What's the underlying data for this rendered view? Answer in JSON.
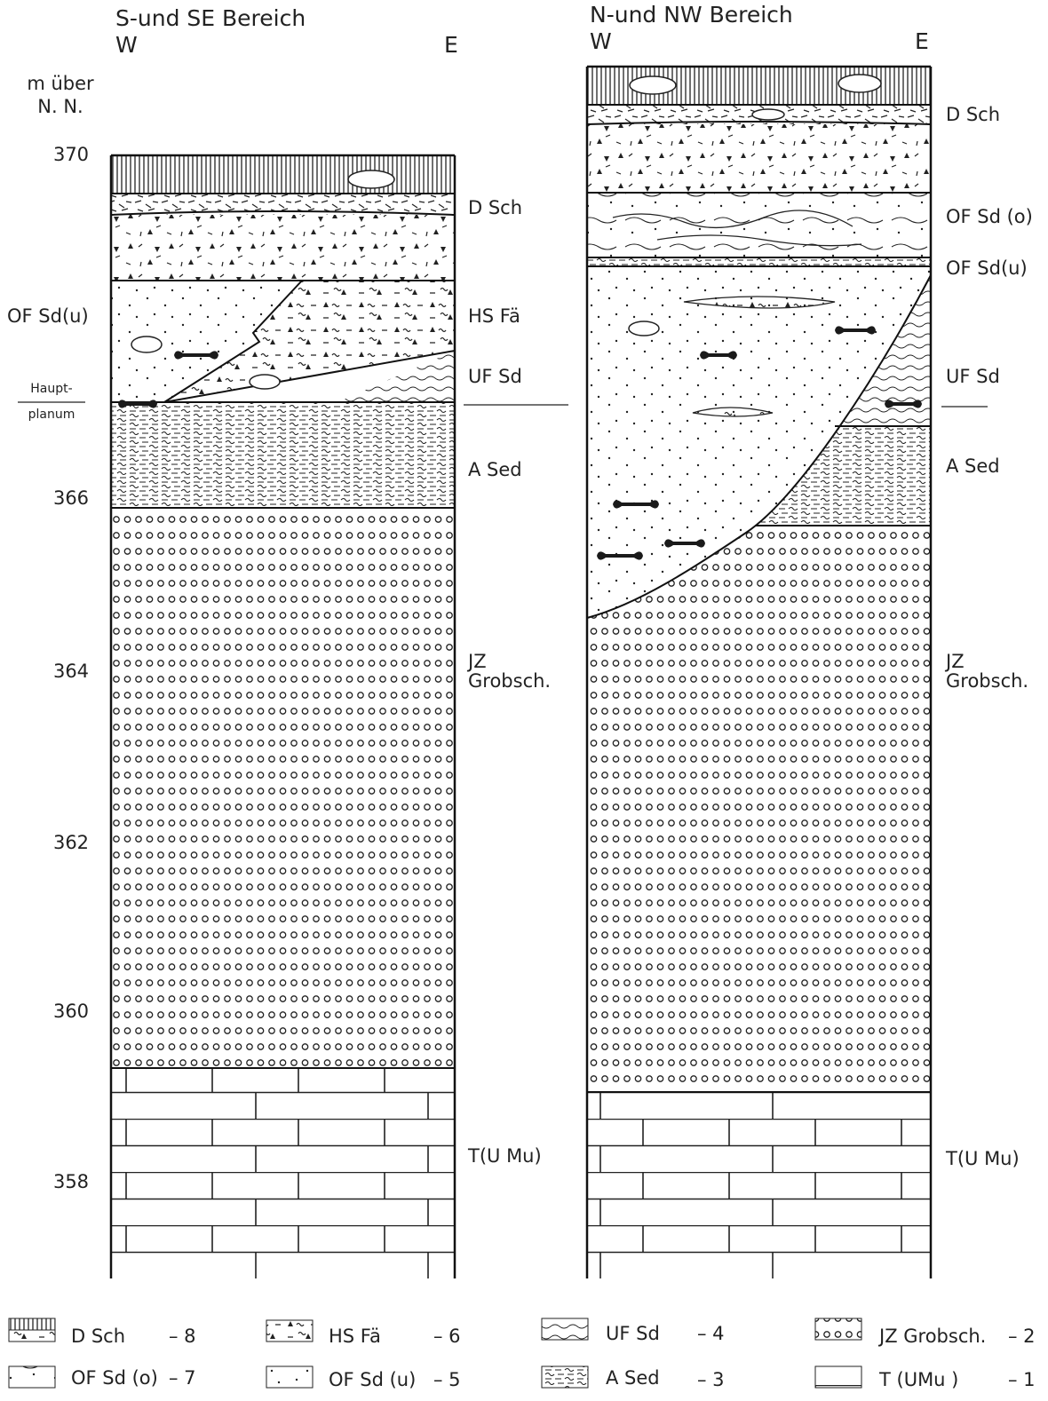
{
  "axis": {
    "unit": [
      "m über",
      "N. N."
    ],
    "levels": [
      "370",
      "366",
      "364",
      "362",
      "360",
      "358"
    ]
  },
  "marker": [
    "Haupt-",
    "planum"
  ],
  "profiles": [
    {
      "title": "S-und SE Bereich",
      "west": "W",
      "east": "E",
      "side_label": "OF Sd(u)",
      "labels": [
        "D Sch",
        "HS Fä",
        "UF Sd",
        "A Sed",
        "JZ",
        "Grobsch.",
        "T(U Mu)"
      ]
    },
    {
      "title": "N-und NW Bereich",
      "west": "W",
      "east": "E",
      "labels": [
        "D Sch",
        "OF Sd (o)",
        "OF Sd(u)",
        "UF Sd",
        "A Sed",
        "JZ",
        "Grobsch.",
        "T(U Mu)"
      ]
    }
  ],
  "legend": [
    {
      "label": "D Sch",
      "code": "– 8"
    },
    {
      "label": "HS Fä",
      "code": "– 6"
    },
    {
      "label": "UF Sd",
      "code": "– 4"
    },
    {
      "label": "JZ Grobsch.",
      "code": "– 2"
    },
    {
      "label": "OF Sd (o)",
      "code": "– 7"
    },
    {
      "label": "OF Sd (u)",
      "code": "– 5"
    },
    {
      "label": "A Sed",
      "code": "– 3"
    },
    {
      "label": "T (UMu )",
      "code": "– 1"
    }
  ]
}
